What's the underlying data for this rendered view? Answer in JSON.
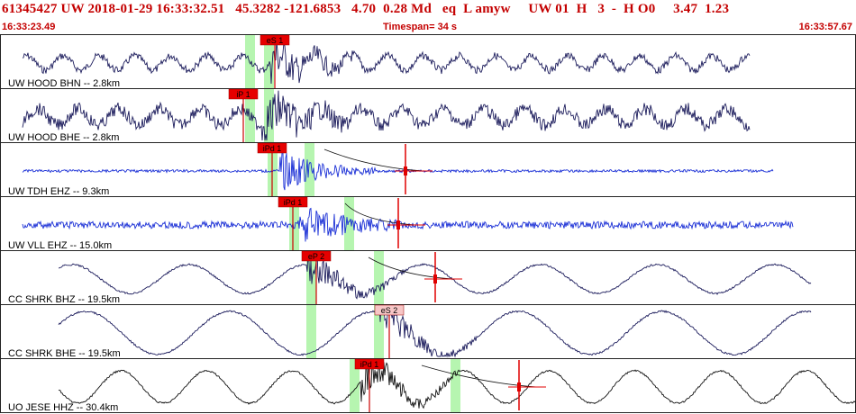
{
  "header": {
    "title": "61345427 UW 2018-01-29 16:33:32.51   45.3282 -121.6853   4.70  0.28 Md   eq  L amyw     UW 01  H   3  -  H O0     3.47  1.23",
    "start_time": "16:33:23.49",
    "timespan": "Timespan=  34 s",
    "end_time": "16:33:57.67"
  },
  "traces": [
    {
      "label": "UW HOOD BHN -- 2.8km",
      "color": "#1c1c5c",
      "amp": 8,
      "period": 40,
      "noise": 4,
      "onset": 300,
      "end": 832,
      "picks": [
        {
          "label": "eS 1",
          "x": 303,
          "style": "red"
        }
      ],
      "bands": [
        272,
        293
      ],
      "markers": []
    },
    {
      "label": "UW HOOD BHE -- 2.8km",
      "color": "#1c1c5c",
      "amp": 9,
      "period": 45,
      "noise": 7,
      "onset": 290,
      "end": 832,
      "picks": [
        {
          "label": "iP 1",
          "x": 268,
          "style": "red"
        }
      ],
      "bands": [
        272,
        293
      ],
      "markers": []
    },
    {
      "label": "UW TDH EHZ -- 9.3km",
      "color": "#1a2fd6",
      "amp": 0,
      "period": 50,
      "noise": 1.5,
      "onset": 310,
      "end": 858,
      "picks": [
        {
          "label": "iPd 1",
          "x": 300,
          "style": "red"
        }
      ],
      "bands": [
        297,
        338
      ],
      "markers": [
        {
          "x": 450,
          "coda": true
        }
      ]
    },
    {
      "label": "UW VLL EHZ -- 15.0km",
      "color": "#1a2fd6",
      "amp": 0,
      "period": 50,
      "noise": 4,
      "onset": 330,
      "end": 880,
      "picks": [
        {
          "label": "iPd 1",
          "x": 323,
          "style": "red"
        }
      ],
      "bands": [
        321,
        382
      ],
      "markers": [
        {
          "x": 442,
          "coda": true
        }
      ]
    },
    {
      "label": "CC SHRK BHZ -- 19.5km",
      "color": "#1c1c5c",
      "amp": 16,
      "period": 130,
      "noise": 1,
      "onset": 340,
      "end": 900,
      "picks": [
        {
          "label": "eP 2",
          "x": 349,
          "style": "red"
        }
      ],
      "bands": [
        340,
        415
      ],
      "markers": [
        {
          "x": 483,
          "coda": true
        }
      ]
    },
    {
      "label": "CC SHRK BHE -- 19.5km",
      "color": "#1c1c5c",
      "amp": 24,
      "period": 160,
      "noise": 1,
      "onset": 420,
      "end": 900,
      "picks": [
        {
          "label": "eS 2",
          "x": 430,
          "style": "pink"
        }
      ],
      "bands": [
        340,
        415
      ],
      "markers": []
    },
    {
      "label": "UO JESE HHZ -- 30.4km",
      "color": "#111111",
      "amp": 18,
      "period": 95,
      "noise": 1,
      "onset": 400,
      "end": 950,
      "picks": [
        {
          "label": "iPd 1",
          "x": 408,
          "style": "red"
        }
      ],
      "bands": [
        388,
        500
      ],
      "markers": [
        {
          "x": 576,
          "coda": true
        }
      ]
    }
  ]
}
